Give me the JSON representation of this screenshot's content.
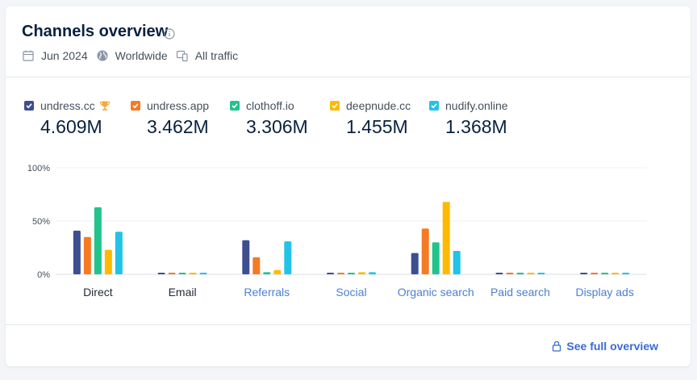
{
  "header": {
    "title": "Channels overview",
    "date": "Jun 2024",
    "region": "Worldwide",
    "traffic": "All traffic"
  },
  "legend": [
    {
      "name": "undress.cc",
      "value": "4.609M",
      "color": "#3d4f8f",
      "trophy": true
    },
    {
      "name": "undress.app",
      "value": "3.462M",
      "color": "#f57a24"
    },
    {
      "name": "clothoff.io",
      "value": "3.306M",
      "color": "#21c48a"
    },
    {
      "name": "deepnude.cc",
      "value": "1.455M",
      "color": "#ffba00"
    },
    {
      "name": "nudify.online",
      "value": "1.368M",
      "color": "#22c3e6"
    }
  ],
  "chart_data": {
    "type": "bar",
    "categories": [
      "Direct",
      "Email",
      "Referrals",
      "Social",
      "Organic search",
      "Paid search",
      "Display ads"
    ],
    "category_link": [
      false,
      false,
      true,
      true,
      true,
      true,
      true
    ],
    "y_ticks": [
      "100%",
      "50%",
      "0%"
    ],
    "ylim": [
      0,
      100
    ],
    "series": [
      {
        "name": "undress.cc",
        "color": "#3d4f8f",
        "values": [
          41,
          1,
          32,
          1,
          20,
          1,
          1
        ]
      },
      {
        "name": "undress.app",
        "color": "#f57a24",
        "values": [
          35,
          1,
          16,
          1,
          43,
          1,
          1
        ]
      },
      {
        "name": "clothoff.io",
        "color": "#21c48a",
        "values": [
          63,
          1,
          2,
          1,
          30,
          1,
          1
        ]
      },
      {
        "name": "deepnude.cc",
        "color": "#ffba00",
        "values": [
          23,
          1,
          4,
          2,
          68,
          1,
          1
        ]
      },
      {
        "name": "nudify.online",
        "color": "#22c3e6",
        "values": [
          40,
          1,
          31,
          2,
          22,
          1,
          1
        ]
      }
    ]
  },
  "footer": {
    "link": "See full overview"
  }
}
